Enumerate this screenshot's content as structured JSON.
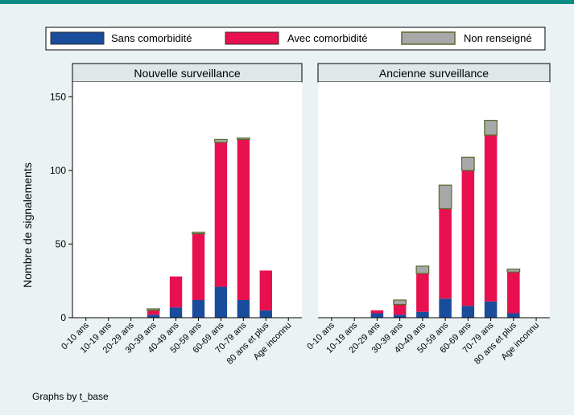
{
  "chart_data": {
    "type": "bar",
    "stacked": true,
    "ylabel": "Nombre de signalements",
    "ylim": [
      0,
      160
    ],
    "yticks": [
      0,
      50,
      100,
      150
    ],
    "note": "Graphs by t_base",
    "categories": [
      "0-10 ans",
      "10-19 ans",
      "20-29 ans",
      "30-39 ans",
      "40-49 ans",
      "50-59 ans",
      "60-69 ans",
      "70-79 ans",
      "80 ans et plus",
      "Age inconnu"
    ],
    "legend": {
      "position": "top",
      "entries": [
        {
          "name": "Sans comorbidité",
          "color": "#1a4c9c"
        },
        {
          "name": "Avec comorbidité",
          "color": "#e8104e"
        },
        {
          "name": "Non renseigné",
          "color": "#a8a8a8"
        }
      ]
    },
    "panels": [
      {
        "title": "Nouvelle surveillance",
        "series": [
          {
            "name": "Sans comorbidité",
            "values": [
              0,
              0,
              0,
              2,
              7,
              12,
              21,
              12,
              5,
              0
            ]
          },
          {
            "name": "Avec comorbidité",
            "values": [
              0,
              0,
              0,
              3,
              21,
              45,
              98,
              109,
              27,
              0
            ]
          },
          {
            "name": "Non renseigné",
            "values": [
              0,
              0,
              0,
              1,
              0,
              1,
              2,
              1,
              0,
              0
            ]
          }
        ]
      },
      {
        "title": "Ancienne surveillance",
        "series": [
          {
            "name": "Sans comorbidité",
            "values": [
              0,
              0,
              3,
              2,
              4,
              13,
              8,
              11,
              3,
              0
            ]
          },
          {
            "name": "Avec comorbidité",
            "values": [
              0,
              0,
              2,
              7,
              26,
              61,
              92,
              113,
              28,
              0
            ]
          },
          {
            "name": "Non renseigné",
            "values": [
              0,
              0,
              0,
              3,
              5,
              16,
              9,
              10,
              2,
              0
            ]
          }
        ]
      }
    ]
  }
}
